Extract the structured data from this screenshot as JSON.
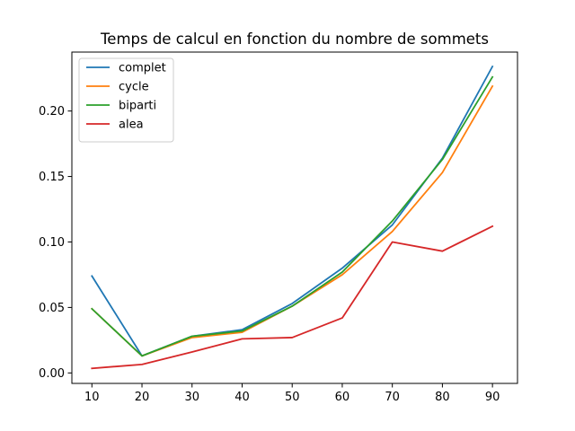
{
  "chart_data": {
    "type": "line",
    "title": "Temps de calcul en fonction du nombre de sommets",
    "xlabel": "",
    "ylabel": "",
    "x": [
      10,
      20,
      30,
      40,
      50,
      60,
      70,
      80,
      90
    ],
    "xticks": [
      "10",
      "20",
      "30",
      "40",
      "50",
      "60",
      "70",
      "80",
      "90"
    ],
    "yticks": [
      "0.00",
      "0.05",
      "0.10",
      "0.15",
      "0.20"
    ],
    "xlim": [
      6,
      95
    ],
    "ylim": [
      -0.008,
      0.245
    ],
    "grid": false,
    "legend_position": "top-left",
    "series": [
      {
        "name": "complet",
        "color": "#1f77b4",
        "values": [
          0.074,
          0.013,
          0.028,
          0.033,
          0.053,
          0.08,
          0.113,
          0.164,
          0.234
        ]
      },
      {
        "name": "cycle",
        "color": "#ff7f0e",
        "values": [
          0.049,
          0.013,
          0.027,
          0.031,
          0.051,
          0.075,
          0.108,
          0.153,
          0.219
        ]
      },
      {
        "name": "biparti",
        "color": "#2ca02c",
        "values": [
          0.049,
          0.013,
          0.028,
          0.032,
          0.051,
          0.077,
          0.116,
          0.163,
          0.226
        ]
      },
      {
        "name": "alea",
        "color": "#d62728",
        "values": [
          0.0035,
          0.0065,
          0.016,
          0.026,
          0.027,
          0.042,
          0.1,
          0.093,
          0.112
        ]
      }
    ]
  }
}
